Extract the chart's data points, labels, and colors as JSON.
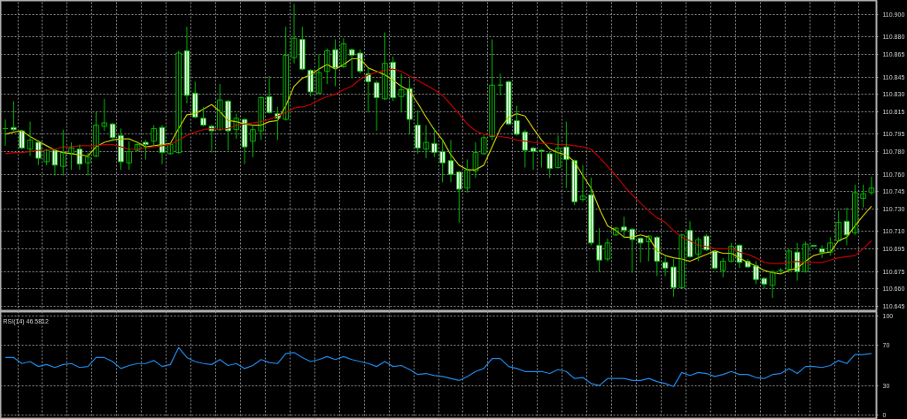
{
  "chart_data": [
    {
      "type": "candlestick",
      "categories": [
        null,
        null,
        null,
        null,
        null,
        null,
        null,
        null,
        null,
        null,
        null,
        null,
        null,
        null,
        null,
        null,
        null,
        null,
        null,
        null,
        null,
        null,
        null,
        null,
        null,
        null,
        null,
        null,
        null,
        null,
        null,
        null,
        null,
        null,
        null,
        null,
        null,
        null,
        null,
        null,
        null,
        null,
        null,
        null,
        null,
        null,
        null,
        null,
        null,
        null,
        null,
        null,
        null,
        null,
        null,
        null,
        null,
        null,
        null,
        null,
        null,
        null,
        null,
        null,
        null,
        null,
        null,
        null,
        null,
        null,
        null,
        null,
        null,
        null,
        null,
        null,
        null,
        null,
        null,
        null,
        null,
        null,
        null,
        null,
        null,
        null,
        null,
        null,
        null,
        null,
        null,
        null,
        null,
        null,
        null,
        null,
        null,
        null,
        null,
        null,
        null,
        null,
        null,
        null,
        null,
        null
      ],
      "color": "#00b400",
      "colors": [
        "#00b400",
        "#ffffff",
        "#ffffff",
        "#000000",
        "#ffffff",
        "#000000",
        "#ffffff",
        "#000000",
        "#000000",
        "#ffffff",
        "#000000",
        "#000000",
        "#000000",
        "#ffffff",
        "#ffffff",
        "#000000",
        "#000000",
        "#ffffff",
        "#000000",
        "#ffffff",
        "#000000",
        "#000000",
        "#ffffff",
        "#ffffff",
        "#ffffff",
        "#ffffff",
        "#000000",
        "#ffffff",
        "#000000",
        "#ffffff",
        "#000000",
        "#000000",
        "#ffffff",
        "#ffffff",
        "#000000",
        "#000000",
        "#ffffff",
        "#ffffff",
        "#000000",
        "#000000",
        "#ffffff",
        "#000000",
        "#ffffff",
        "#ffffff",
        "#ffffff",
        "#ffffff",
        "#000000",
        "#ffffff",
        "#000000",
        "#ffffff",
        "#ffffff",
        "#000000",
        "#ffffff",
        "#ffffff",
        "#ffffff",
        "#ffffff",
        "#000000",
        "#000000",
        "#000000",
        "#000000",
        "#00b400",
        "#ffffff",
        "#ffffff",
        "#ffffff",
        "#ffffff",
        "#ffffff",
        "#ffffff",
        "#000000",
        "#ffffff",
        "#ffffff",
        "#000000",
        "#ffffff",
        "#ffffff",
        "#000000",
        "#000000",
        "#ffffff",
        "#ffffff",
        "#ffffff",
        "#000000",
        "#ffffff",
        "#ffffff",
        "#ffffff",
        "#000000",
        "#ffffff",
        "#000000",
        "#ffffff",
        "#ffffff",
        "#000000",
        "#000000",
        "#ffffff",
        "#ffffff",
        "#ffffff",
        "#ffffff",
        "#000000",
        "#00b400",
        "#000000",
        "#ffffff",
        "#000000",
        "#ffffff",
        "#ffffff",
        "#000000",
        "#000000",
        "#ffffff",
        "#000000",
        "#000000",
        "#000000"
      ],
      "ohlc": [
        [
          110.8,
          110.808,
          110.785,
          110.8
        ],
        [
          110.801,
          110.824,
          110.798,
          110.799
        ],
        [
          110.798,
          110.799,
          110.782,
          110.783
        ],
        [
          110.782,
          110.806,
          110.776,
          110.79
        ],
        [
          110.788,
          110.79,
          110.768,
          110.774
        ],
        [
          110.771,
          110.782,
          110.768,
          110.781
        ],
        [
          110.781,
          110.782,
          110.759,
          110.768
        ],
        [
          110.767,
          110.799,
          110.759,
          110.779
        ],
        [
          110.778,
          110.788,
          110.764,
          110.783
        ],
        [
          110.782,
          110.786,
          110.764,
          110.769
        ],
        [
          110.77,
          110.779,
          110.759,
          110.775
        ],
        [
          110.776,
          110.815,
          110.775,
          110.803
        ],
        [
          110.802,
          110.826,
          110.798,
          110.805
        ],
        [
          110.804,
          110.805,
          110.789,
          110.792
        ],
        [
          110.794,
          110.8,
          110.764,
          110.771
        ],
        [
          110.77,
          110.789,
          110.764,
          110.78
        ],
        [
          110.781,
          110.789,
          110.78,
          110.786
        ],
        [
          110.788,
          110.79,
          110.773,
          110.786
        ],
        [
          110.789,
          110.803,
          110.785,
          110.8
        ],
        [
          110.801,
          110.803,
          110.769,
          110.779
        ],
        [
          110.778,
          110.788,
          110.777,
          110.786
        ],
        [
          110.779,
          110.868,
          110.778,
          110.866
        ],
        [
          110.868,
          110.889,
          110.822,
          110.829
        ],
        [
          110.831,
          110.841,
          110.809,
          110.81
        ],
        [
          110.809,
          110.819,
          110.802,
          110.803
        ],
        [
          110.802,
          110.803,
          110.779,
          110.798
        ],
        [
          110.799,
          110.839,
          110.798,
          110.825
        ],
        [
          110.824,
          110.825,
          110.781,
          110.798
        ],
        [
          110.799,
          110.813,
          110.791,
          110.809
        ],
        [
          110.808,
          110.809,
          110.769,
          110.784
        ],
        [
          110.789,
          110.803,
          110.775,
          110.799
        ],
        [
          110.798,
          110.828,
          110.79,
          110.827
        ],
        [
          110.828,
          110.846,
          110.813,
          110.814
        ],
        [
          110.813,
          110.819,
          110.79,
          110.809
        ],
        [
          110.808,
          110.889,
          110.807,
          110.864
        ],
        [
          110.862,
          110.909,
          110.857,
          110.879
        ],
        [
          110.878,
          110.889,
          110.851,
          110.852
        ],
        [
          110.851,
          110.852,
          110.828,
          110.832
        ],
        [
          110.831,
          110.865,
          110.83,
          110.849
        ],
        [
          110.85,
          110.87,
          110.839,
          110.868
        ],
        [
          110.869,
          110.878,
          110.837,
          110.853
        ],
        [
          110.854,
          110.879,
          110.853,
          110.874
        ],
        [
          110.869,
          110.87,
          110.844,
          110.864
        ],
        [
          110.866,
          110.869,
          110.848,
          110.85
        ],
        [
          110.848,
          110.853,
          110.814,
          110.841
        ],
        [
          110.84,
          110.842,
          110.798,
          110.827
        ],
        [
          110.826,
          110.884,
          110.825,
          110.857
        ],
        [
          110.858,
          110.863,
          110.824,
          110.827
        ],
        [
          110.828,
          110.848,
          110.814,
          110.834
        ],
        [
          110.835,
          110.844,
          110.795,
          110.808
        ],
        [
          110.803,
          110.816,
          110.778,
          110.783
        ],
        [
          110.782,
          110.803,
          110.774,
          110.788
        ],
        [
          110.787,
          110.8,
          110.775,
          110.779
        ],
        [
          110.78,
          110.791,
          110.753,
          110.77
        ],
        [
          110.772,
          110.79,
          110.753,
          110.76
        ],
        [
          110.762,
          110.763,
          110.718,
          110.747
        ],
        [
          110.748,
          110.773,
          110.744,
          110.764
        ],
        [
          110.763,
          110.788,
          110.757,
          110.779
        ],
        [
          110.778,
          110.794,
          110.777,
          110.792
        ],
        [
          110.793,
          110.878,
          110.79,
          110.838
        ],
        [
          110.838,
          110.848,
          110.829,
          110.838
        ],
        [
          110.841,
          110.842,
          110.803,
          110.804
        ],
        [
          110.807,
          110.82,
          110.794,
          110.795
        ],
        [
          110.797,
          110.799,
          110.766,
          110.781
        ],
        [
          110.783,
          110.784,
          110.764,
          110.78
        ],
        [
          110.781,
          110.782,
          110.766,
          110.78
        ],
        [
          110.778,
          110.78,
          110.757,
          110.765
        ],
        [
          110.766,
          110.794,
          110.765,
          110.783
        ],
        [
          110.784,
          110.806,
          110.748,
          110.773
        ],
        [
          110.772,
          110.773,
          110.733,
          110.736
        ],
        [
          110.738,
          110.768,
          110.736,
          110.741
        ],
        [
          110.742,
          110.757,
          110.698,
          110.7
        ],
        [
          110.698,
          110.713,
          110.675,
          110.685
        ],
        [
          110.686,
          110.704,
          110.684,
          110.7
        ],
        [
          110.707,
          110.714,
          110.706,
          110.713
        ],
        [
          110.714,
          110.723,
          110.705,
          110.711
        ],
        [
          110.712,
          110.713,
          110.674,
          110.703
        ],
        [
          110.704,
          110.705,
          110.683,
          110.7
        ],
        [
          110.701,
          110.707,
          110.684,
          110.706
        ],
        [
          110.705,
          110.706,
          110.671,
          110.684
        ],
        [
          110.683,
          110.688,
          110.671,
          110.678
        ],
        [
          110.679,
          110.686,
          110.653,
          110.661
        ],
        [
          110.661,
          110.708,
          110.66,
          110.707
        ],
        [
          110.711,
          110.719,
          110.687,
          110.688
        ],
        [
          110.69,
          110.705,
          110.684,
          110.703
        ],
        [
          110.706,
          110.708,
          110.693,
          110.694
        ],
        [
          110.693,
          110.694,
          110.677,
          110.678
        ],
        [
          110.676,
          110.687,
          110.67,
          110.684
        ],
        [
          110.684,
          110.7,
          110.683,
          110.697
        ],
        [
          110.698,
          110.699,
          110.678,
          110.683
        ],
        [
          110.684,
          110.686,
          110.678,
          110.679
        ],
        [
          110.68,
          110.684,
          110.664,
          110.668
        ],
        [
          110.669,
          110.67,
          110.66,
          110.664
        ],
        [
          110.663,
          110.676,
          110.652,
          110.675
        ],
        [
          110.676,
          110.678,
          110.673,
          110.676
        ],
        [
          110.677,
          110.695,
          110.674,
          110.693
        ],
        [
          110.692,
          110.7,
          110.667,
          110.675
        ],
        [
          110.675,
          110.701,
          110.674,
          110.699
        ],
        [
          110.698,
          110.698,
          110.697,
          110.697
        ],
        [
          110.695,
          110.698,
          110.687,
          110.692
        ],
        [
          110.692,
          110.705,
          110.689,
          110.7
        ],
        [
          110.702,
          110.728,
          110.701,
          110.718
        ],
        [
          110.719,
          110.731,
          110.698,
          110.707
        ],
        [
          110.709,
          110.751,
          110.707,
          110.744
        ],
        [
          110.739,
          110.751,
          110.731,
          110.743
        ],
        [
          110.744,
          110.758,
          110.742,
          110.748
        ]
      ],
      "series": [
        {
          "type": "line",
          "color": "#c8c800",
          "values": [
            110.795,
            110.797,
            110.798,
            110.793,
            110.789,
            110.785,
            110.781,
            110.779,
            110.778,
            110.777,
            110.776,
            110.784,
            110.788,
            110.79,
            110.791,
            110.791,
            110.788,
            110.784,
            110.785,
            110.786,
            110.787,
            110.8,
            110.812,
            110.813,
            110.817,
            110.821,
            110.815,
            110.807,
            110.806,
            110.804,
            110.803,
            110.803,
            110.806,
            110.807,
            110.82,
            110.837,
            110.844,
            110.847,
            110.852,
            110.856,
            110.852,
            110.856,
            110.861,
            110.861,
            110.853,
            110.85,
            110.847,
            110.842,
            110.837,
            110.833,
            110.822,
            110.81,
            110.799,
            110.79,
            110.777,
            110.768,
            110.764,
            110.764,
            110.768,
            110.784,
            110.8,
            110.81,
            110.813,
            110.811,
            110.8,
            110.79,
            110.782,
            110.779,
            110.777,
            110.771,
            110.759,
            110.748,
            110.73,
            110.715,
            110.711,
            110.705,
            110.705,
            110.707,
            110.705,
            110.693,
            110.689,
            110.687,
            110.686,
            110.684,
            110.687,
            110.69,
            110.693,
            110.691,
            110.691,
            110.687,
            110.683,
            110.68,
            110.676,
            110.674,
            110.673,
            110.676,
            110.678,
            110.684,
            110.689,
            110.691,
            110.692,
            110.702,
            110.705,
            110.715,
            110.724,
            110.732
          ]
        },
        {
          "type": "line",
          "color": "#c00000",
          "values": [
            110.778,
            110.779,
            110.779,
            110.78,
            110.781,
            110.781,
            110.782,
            110.784,
            110.784,
            110.785,
            110.785,
            110.785,
            110.786,
            110.786,
            110.784,
            110.782,
            110.782,
            110.783,
            110.784,
            110.785,
            110.786,
            110.79,
            110.794,
            110.797,
            110.799,
            110.8,
            110.799,
            110.8,
            110.803,
            110.804,
            110.805,
            110.806,
            110.808,
            110.811,
            110.814,
            110.818,
            110.819,
            110.821,
            110.825,
            110.828,
            110.83,
            110.834,
            110.837,
            110.843,
            110.847,
            110.849,
            110.851,
            110.852,
            110.85,
            110.846,
            110.842,
            110.838,
            110.834,
            110.829,
            110.821,
            110.813,
            110.804,
            110.798,
            110.795,
            110.794,
            110.793,
            110.792,
            110.79,
            110.789,
            110.788,
            110.787,
            110.787,
            110.786,
            110.786,
            110.785,
            110.784,
            110.782,
            110.775,
            110.767,
            110.759,
            110.75,
            110.742,
            110.735,
            110.728,
            110.722,
            110.718,
            110.711,
            110.705,
            110.702,
            110.698,
            110.697,
            110.695,
            110.695,
            110.695,
            110.692,
            110.69,
            110.687,
            110.683,
            110.682,
            110.682,
            110.683,
            110.684,
            110.683,
            110.683,
            110.683,
            110.685,
            110.687,
            110.688,
            110.689,
            110.695,
            110.702
          ]
        }
      ],
      "ylim": [
        110.64,
        110.912
      ],
      "yticks": [
        {
          "value": 110.9,
          "label": "110.900"
        },
        {
          "value": 110.88,
          "label": "110.880"
        },
        {
          "value": 110.865,
          "label": "110.865"
        },
        {
          "value": 110.845,
          "label": "110.845"
        },
        {
          "value": 110.83,
          "label": "110.830"
        },
        {
          "value": 110.815,
          "label": "110.815"
        },
        {
          "value": 110.795,
          "label": "110.795"
        },
        {
          "value": 110.78,
          "label": "110.780"
        },
        {
          "value": 110.76,
          "label": "110.760"
        },
        {
          "value": 110.745,
          "label": "110.745"
        },
        {
          "value": 110.73,
          "label": "110.730"
        },
        {
          "value": 110.71,
          "label": "110.710"
        },
        {
          "value": 110.695,
          "label": "110.695"
        },
        {
          "value": 110.675,
          "label": "110.675"
        },
        {
          "value": 110.66,
          "label": "110.660"
        },
        {
          "value": 110.645,
          "label": "110.645"
        }
      ],
      "grid": true,
      "tick_labels": "y"
    },
    {
      "type": "line",
      "title": "RSI(14) 46.5812",
      "color": "#1e88e5",
      "categories": [
        null,
        null,
        null,
        null,
        null,
        null,
        null,
        null,
        null,
        null,
        null,
        null,
        null,
        null,
        null,
        null,
        null,
        null,
        null,
        null,
        null,
        null,
        null,
        null,
        null,
        null,
        null,
        null,
        null,
        null,
        null,
        null,
        null,
        null,
        null,
        null,
        null,
        null,
        null,
        null,
        null,
        null,
        null,
        null,
        null,
        null,
        null,
        null,
        null,
        null,
        null,
        null,
        null,
        null,
        null,
        null,
        null,
        null,
        null,
        null,
        null,
        null,
        null,
        null,
        null,
        null,
        null,
        null,
        null,
        null,
        null,
        null,
        null,
        null,
        null,
        null,
        null,
        null,
        null,
        null,
        null,
        null,
        null,
        null,
        null,
        null,
        null,
        null,
        null,
        null,
        null,
        null,
        null,
        null,
        null,
        null,
        null,
        null,
        null,
        null,
        null,
        null,
        null,
        null,
        null,
        null
      ],
      "values": [
        58,
        58,
        52,
        54,
        49,
        51,
        48,
        51,
        52,
        48,
        49,
        58,
        58,
        54,
        47,
        50,
        52,
        52,
        55,
        49,
        51,
        68,
        58,
        54,
        52,
        51,
        56,
        50,
        52,
        47,
        50,
        56,
        53,
        52,
        62,
        63,
        58,
        54,
        56,
        59,
        56,
        59,
        56,
        54,
        52,
        49,
        54,
        49,
        50,
        46,
        41,
        42,
        40,
        39,
        37,
        35,
        39,
        44,
        47,
        57,
        57,
        49,
        47,
        44,
        44,
        44,
        42,
        46,
        44,
        37,
        38,
        32,
        30,
        37,
        37,
        37,
        35,
        35,
        37,
        34,
        32,
        29,
        43,
        40,
        43,
        42,
        39,
        41,
        44,
        41,
        41,
        38,
        37,
        41,
        42,
        47,
        42,
        49,
        49,
        48,
        50,
        55,
        52,
        61,
        61,
        62
      ],
      "ylim": [
        -4,
        104
      ],
      "yticks": [
        0,
        30,
        70,
        100
      ],
      "grid": true,
      "tick_labels": "y"
    }
  ]
}
